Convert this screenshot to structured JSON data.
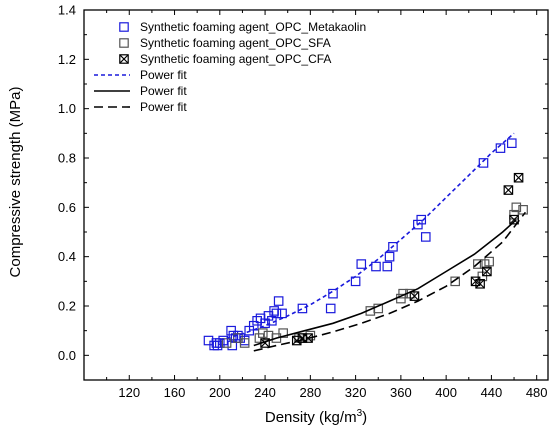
{
  "chart_data": {
    "type": "scatter",
    "xlabel": "Density (kg/m",
    "xlabel_sup": "3",
    "xlabel_end": ")",
    "ylabel": "Compressive strength (MPa)",
    "xlim": [
      80,
      490
    ],
    "ylim": [
      -0.1,
      1.4
    ],
    "xticks": [
      120,
      160,
      200,
      240,
      280,
      320,
      360,
      400,
      440,
      480
    ],
    "yticks": [
      0.0,
      0.2,
      0.4,
      0.6,
      0.8,
      1.0,
      1.2,
      1.4
    ],
    "ytick_labels": [
      "0.0",
      "0.2",
      "0.4",
      "0.6",
      "0.8",
      "1.0",
      "1.2",
      "1.4"
    ],
    "legend_position": "top-left",
    "series": [
      {
        "name": "Synthetic foaming agent_OPC_Metakaolin",
        "marker": "open-square",
        "color": "#1a1adc",
        "points": [
          [
            190,
            0.06
          ],
          [
            195,
            0.04
          ],
          [
            197,
            0.05
          ],
          [
            198,
            0.04
          ],
          [
            200,
            0.05
          ],
          [
            203,
            0.06
          ],
          [
            210,
            0.1
          ],
          [
            211,
            0.04
          ],
          [
            212,
            0.08
          ],
          [
            214,
            0.07
          ],
          [
            216,
            0.08
          ],
          [
            218,
            0.07
          ],
          [
            222,
            0.06
          ],
          [
            226,
            0.1
          ],
          [
            230,
            0.12
          ],
          [
            233,
            0.14
          ],
          [
            236,
            0.15
          ],
          [
            240,
            0.13
          ],
          [
            243,
            0.16
          ],
          [
            246,
            0.14
          ],
          [
            248,
            0.18
          ],
          [
            250,
            0.17
          ],
          [
            252,
            0.22
          ],
          [
            255,
            0.17
          ],
          [
            273,
            0.19
          ],
          [
            298,
            0.19
          ],
          [
            300,
            0.25
          ],
          [
            320,
            0.3
          ],
          [
            325,
            0.37
          ],
          [
            338,
            0.36
          ],
          [
            348,
            0.36
          ],
          [
            350,
            0.4
          ],
          [
            353,
            0.44
          ],
          [
            375,
            0.53
          ],
          [
            378,
            0.55
          ],
          [
            382,
            0.48
          ],
          [
            433,
            0.78
          ],
          [
            448,
            0.84
          ],
          [
            458,
            0.86
          ]
        ]
      },
      {
        "name": "Synthetic foaming agent_OPC_SFA",
        "marker": "open-square",
        "color": "#555555",
        "points": [
          [
            206,
            0.05
          ],
          [
            216,
            0.07
          ],
          [
            222,
            0.05
          ],
          [
            235,
            0.07
          ],
          [
            238,
            0.09
          ],
          [
            243,
            0.08
          ],
          [
            250,
            0.07
          ],
          [
            256,
            0.09
          ],
          [
            270,
            0.07
          ],
          [
            280,
            0.08
          ],
          [
            333,
            0.18
          ],
          [
            340,
            0.19
          ],
          [
            360,
            0.23
          ],
          [
            362,
            0.25
          ],
          [
            368,
            0.25
          ],
          [
            408,
            0.3
          ],
          [
            428,
            0.37
          ],
          [
            432,
            0.32
          ],
          [
            434,
            0.37
          ],
          [
            438,
            0.38
          ],
          [
            460,
            0.57
          ],
          [
            462,
            0.6
          ],
          [
            468,
            0.59
          ]
        ]
      },
      {
        "name": "Synthetic foaming agent_OPC_CFA",
        "marker": "x-square",
        "color": "#000000",
        "points": [
          [
            240,
            0.05
          ],
          [
            268,
            0.06
          ],
          [
            273,
            0.07
          ],
          [
            278,
            0.07
          ],
          [
            372,
            0.24
          ],
          [
            426,
            0.3
          ],
          [
            430,
            0.29
          ],
          [
            436,
            0.34
          ],
          [
            455,
            0.67
          ],
          [
            460,
            0.55
          ],
          [
            464,
            0.72
          ]
        ]
      }
    ],
    "fits": [
      {
        "name": "Power fit",
        "style": "short-dash",
        "color": "#1a1adc",
        "x": [
          200,
          220,
          240,
          260,
          280,
          300,
          320,
          340,
          360,
          380,
          400,
          420,
          440,
          460
        ],
        "y": [
          0.062,
          0.087,
          0.12,
          0.16,
          0.205,
          0.26,
          0.32,
          0.39,
          0.47,
          0.55,
          0.64,
          0.73,
          0.82,
          0.9
        ]
      },
      {
        "name": "Power fit",
        "style": "solid",
        "color": "#000000",
        "x": [
          230,
          250,
          275,
          300,
          325,
          350,
          375,
          400,
          425,
          450,
          462
        ],
        "y": [
          0.04,
          0.07,
          0.1,
          0.13,
          0.17,
          0.22,
          0.27,
          0.34,
          0.41,
          0.5,
          0.55
        ]
      },
      {
        "name": "Power fit",
        "style": "long-dash",
        "color": "#000000",
        "x": [
          230,
          250,
          275,
          300,
          325,
          350,
          375,
          400,
          425,
          450,
          470
        ],
        "y": [
          0.018,
          0.04,
          0.065,
          0.095,
          0.13,
          0.17,
          0.22,
          0.28,
          0.36,
          0.46,
          0.58
        ]
      }
    ]
  }
}
